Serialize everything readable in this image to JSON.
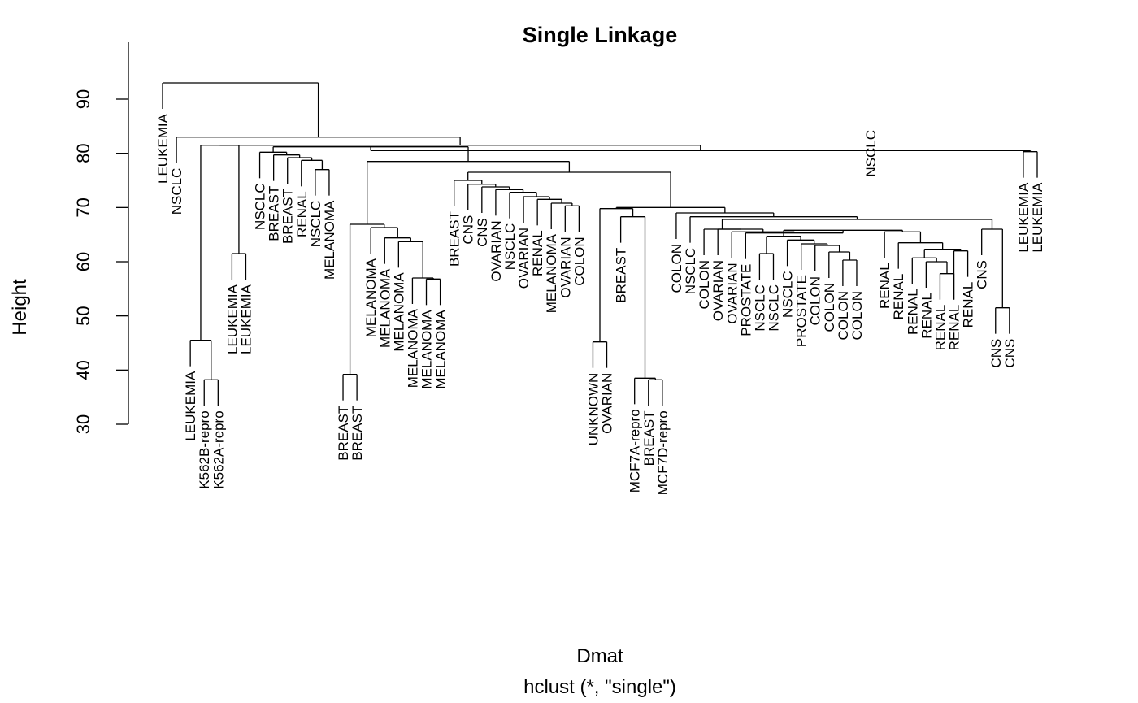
{
  "chart_data": {
    "type": "dendrogram",
    "title": "Single Linkage",
    "xlabel": "Dmat",
    "sublabel": "hclust (*, \"single\")",
    "ylabel": "Height",
    "ylim": [
      30,
      95
    ],
    "yticks": [
      30,
      40,
      50,
      60,
      70,
      80,
      90
    ],
    "grid": false,
    "leaves": [
      "LEUKEMIA",
      "NSCLC",
      "LEUKEMIA",
      "K562B-repro",
      "K562A-repro",
      "LEUKEMIA",
      "LEUKEMIA",
      "NSCLC",
      "BREAST",
      "BREAST",
      "RENAL",
      "NSCLC",
      "MELANOMA",
      "BREAST",
      "BREAST",
      "MELANOMA",
      "MELANOMA",
      "MELANOMA",
      "MELANOMA",
      "MELANOMA",
      "MELANOMA",
      "BREAST",
      "CNS",
      "CNS",
      "OVARIAN",
      "NSCLC",
      "OVARIAN",
      "RENAL",
      "MELANOMA",
      "OVARIAN",
      "COLON",
      "UNKNOWN",
      "OVARIAN",
      "BREAST",
      "MCF7A-repro",
      "BREAST",
      "MCF7D-repro",
      "COLON",
      "NSCLC",
      "COLON",
      "OVARIAN",
      "OVARIAN",
      "PROSTATE",
      "NSCLC",
      "NSCLC",
      "NSCLC",
      "PROSTATE",
      "COLON",
      "COLON",
      "COLON",
      "COLON",
      "NSCLC",
      "RENAL",
      "RENAL",
      "RENAL",
      "RENAL",
      "RENAL",
      "RENAL",
      "RENAL",
      "CNS",
      "CNS",
      "CNS",
      "LEUKEMIA",
      "LEUKEMIA"
    ],
    "merges": [
      {
        "a": "L3",
        "b": "L4",
        "height": 38.2
      },
      {
        "a": "L2",
        "b": "M0",
        "height": 45.5
      },
      {
        "a": "L5",
        "b": "L6",
        "height": 61.5
      },
      {
        "a": "M1",
        "b": "M2",
        "height": 81.5
      },
      {
        "a": "L11",
        "b": "L12",
        "height": 77.0
      },
      {
        "a": "L10",
        "b": "M4",
        "height": 78.7
      },
      {
        "a": "L9",
        "b": "M5",
        "height": 79.2
      },
      {
        "a": "L8",
        "b": "M6",
        "height": 79.7
      },
      {
        "a": "L7",
        "b": "M7",
        "height": 80.2
      },
      {
        "a": "L13",
        "b": "L14",
        "height": 39.2
      },
      {
        "a": "L19",
        "b": "L20",
        "height": 56.8
      },
      {
        "a": "L18",
        "b": "M10",
        "height": 57.0
      },
      {
        "a": "L17",
        "b": "M11",
        "height": 63.7
      },
      {
        "a": "L16",
        "b": "M12",
        "height": 64.4
      },
      {
        "a": "L15",
        "b": "M13",
        "height": 66.3
      },
      {
        "a": "M9",
        "b": "M14",
        "height": 66.9
      },
      {
        "a": "L29",
        "b": "L30",
        "height": 70.3
      },
      {
        "a": "L28",
        "b": "M16",
        "height": 70.8
      },
      {
        "a": "L27",
        "b": "M17",
        "height": 71.5
      },
      {
        "a": "L26",
        "b": "M18",
        "height": 72.0
      },
      {
        "a": "L25",
        "b": "M19",
        "height": 72.8
      },
      {
        "a": "L24",
        "b": "M20",
        "height": 73.3
      },
      {
        "a": "L23",
        "b": "M21",
        "height": 73.8
      },
      {
        "a": "L22",
        "b": "M22",
        "height": 74.3
      },
      {
        "a": "L21",
        "b": "M23",
        "height": 75.0
      },
      {
        "a": "L31",
        "b": "L32",
        "height": 45.2
      },
      {
        "a": "L35",
        "b": "L36",
        "height": 38.2
      },
      {
        "a": "L34",
        "b": "M26",
        "height": 38.5
      },
      {
        "a": "L33",
        "b": "M27",
        "height": 68.3
      },
      {
        "a": "M25",
        "b": "M28",
        "height": 69.8
      },
      {
        "a": "L43",
        "b": "L44",
        "height": 61.5
      },
      {
        "a": "L49",
        "b": "L50",
        "height": 60.3
      },
      {
        "a": "L48",
        "b": "M31",
        "height": 61.8
      },
      {
        "a": "L47",
        "b": "M32",
        "height": 63.0
      },
      {
        "a": "L46",
        "b": "M33",
        "height": 63.3
      },
      {
        "a": "L45",
        "b": "M34",
        "height": 64.0
      },
      {
        "a": "M30",
        "b": "M35",
        "height": 64.7
      },
      {
        "a": "L56",
        "b": "L57",
        "height": 57.8
      },
      {
        "a": "L55",
        "b": "M37",
        "height": 60.0
      },
      {
        "a": "L54",
        "b": "M38",
        "height": 60.7
      },
      {
        "a": "L57",
        "b": "L58",
        "height": 62.0
      },
      {
        "a": "M39",
        "b": "M40",
        "height": 62.3
      },
      {
        "a": "L53",
        "b": "M41",
        "height": 63.5
      },
      {
        "a": "L52",
        "b": "M42",
        "height": 65.5
      },
      {
        "a": "L60",
        "b": "L61",
        "height": 51.5
      },
      {
        "a": "L59",
        "b": "M44",
        "height": 66.0
      },
      {
        "a": "M36",
        "b": "M43",
        "height": 65.8
      },
      {
        "a": "L42",
        "b": "M46",
        "height": 65.3
      },
      {
        "a": "L41",
        "b": "M47",
        "height": 65.5
      },
      {
        "a": "L40",
        "b": "M48",
        "height": 66.0
      },
      {
        "a": "L39",
        "b": "M49",
        "height": 66.0
      },
      {
        "a": "M50",
        "b": "M45",
        "height": 67.8
      },
      {
        "a": "L38",
        "b": "M51",
        "height": 68.3
      },
      {
        "a": "L37",
        "b": "M52",
        "height": 69.0
      },
      {
        "a": "M29",
        "b": "M53",
        "height": 70.0
      },
      {
        "a": "M24",
        "b": "M54",
        "height": 76.5
      },
      {
        "a": "M15",
        "b": "M55",
        "height": 78.5
      },
      {
        "a": "M8",
        "b": "M56",
        "height": 81.2
      },
      {
        "a": "L62",
        "b": "L63",
        "height": 80.3
      },
      {
        "a": "M57",
        "b": "M58",
        "height": 80.5
      },
      {
        "a": "M3",
        "b": "M59",
        "height": 81.5
      },
      {
        "a": "L1",
        "b": "M60",
        "height": 83.0
      },
      {
        "a": "L0",
        "b": "M61",
        "height": 93.0
      }
    ]
  }
}
